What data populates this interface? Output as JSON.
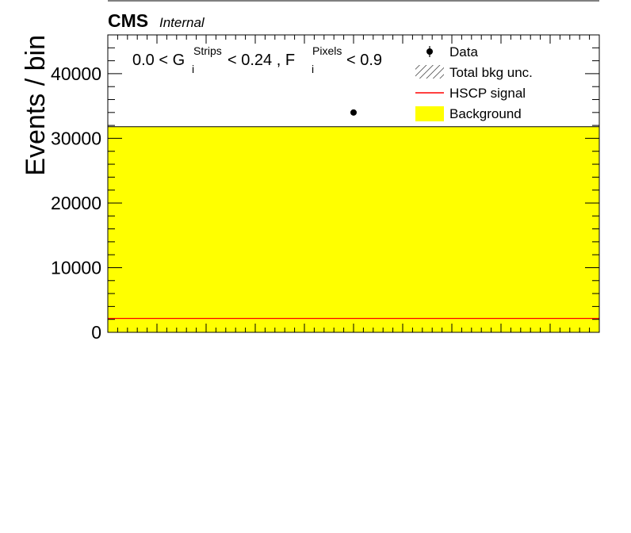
{
  "header": {
    "experiment": "CMS",
    "status": "Internal"
  },
  "selection_label": {
    "part1": "0.0 < G",
    "g_sub": "i",
    "g_sup": "Strips",
    "part2": " < 0.24 , F",
    "f_sub": "i",
    "f_sup": "Pixels",
    "part3": " < 0.9"
  },
  "colors": {
    "background_fill": "#ffff00",
    "signal_line": "#ff0000",
    "data_marker": "#000000",
    "frame": "#000000"
  },
  "chart_data": {
    "type": "bar",
    "title": "",
    "xlabel": "",
    "ylabel": "Events / bin",
    "xlim": [
      0,
      1
    ],
    "ylim": [
      0,
      46000
    ],
    "yticks": [
      0,
      10000,
      20000,
      30000,
      40000
    ],
    "ytick_labels": [
      "0",
      "10000",
      "20000",
      "30000",
      "40000"
    ],
    "grid": false,
    "legend_position": "top-right",
    "legend": [
      {
        "label": "Data",
        "style": "marker"
      },
      {
        "label": "Total bkg unc.",
        "style": "hatch"
      },
      {
        "label": "HSCP signal",
        "style": "line"
      },
      {
        "label": "Background",
        "style": "fill"
      }
    ],
    "series": [
      {
        "name": "Background",
        "kind": "hist",
        "bins": [
          [
            0,
            1,
            31800
          ]
        ]
      },
      {
        "name": "HSCP signal",
        "kind": "hist-line",
        "bins": [
          [
            0,
            1,
            2150
          ]
        ]
      },
      {
        "name": "Data",
        "kind": "points",
        "points": [
          [
            0.5,
            34000
          ]
        ]
      }
    ]
  }
}
